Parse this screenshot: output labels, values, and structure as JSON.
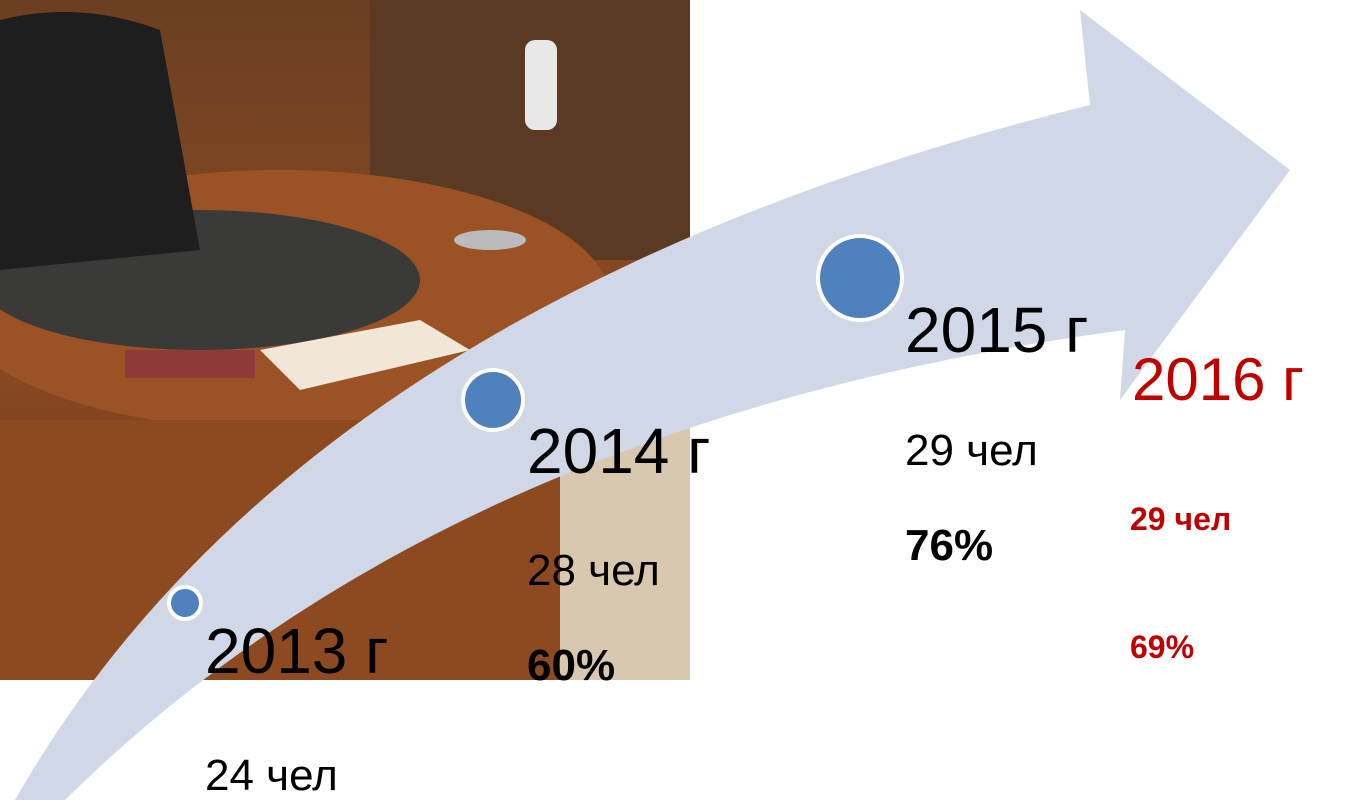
{
  "items": [
    {
      "year": "2013 г",
      "count": "24 чел"
    },
    {
      "year": "2014 г",
      "count": "28 чел",
      "share": "60%"
    },
    {
      "year": "2015 г",
      "count": "29 чел",
      "share": "76%"
    },
    {
      "year": "2016 г",
      "count": "29 чел",
      "share": "69%"
    }
  ]
}
